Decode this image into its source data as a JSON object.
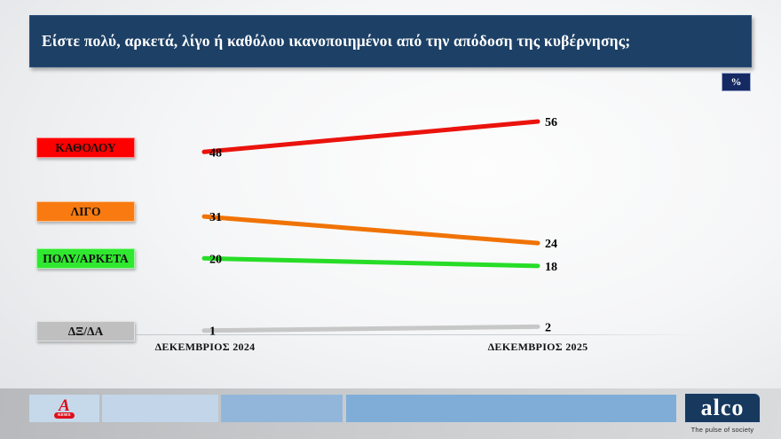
{
  "header": {
    "title": "Είστε πολύ, αρκετά, λίγο ή καθόλου ικανοποιημένοι από την απόδοση της κυβέρνησης;"
  },
  "unit_badge": "%",
  "chart_data": {
    "type": "line",
    "subtype": "slope-chart",
    "categories": [
      "ΔΕΚΕΜΒΡΙΟΣ 2024",
      "ΔΕΚΕΜΒΡΙΟΣ 2025"
    ],
    "series": [
      {
        "name": "ΚΑΘΟΛΟΥ",
        "values": [
          48,
          56
        ],
        "line_color": "#ea130d",
        "label_bg": "#ff0000"
      },
      {
        "name": "ΛΙΓΟ",
        "values": [
          31,
          24
        ],
        "line_color": "#f07306",
        "label_bg": "#f87a10"
      },
      {
        "name": "ΠΟΛΥ/ΑΡΚΕΤΑ",
        "values": [
          20,
          18
        ],
        "line_color": "#27dd27",
        "label_bg": "#30e830"
      },
      {
        "name": "ΔΞ/ΔΑ",
        "values": [
          1,
          2
        ],
        "line_color": "#c7c7c7",
        "label_bg": "#bfbfbf"
      }
    ],
    "ylim": [
      0,
      60
    ],
    "unit": "%",
    "grid": false,
    "legend_position": "left"
  },
  "colors": {
    "header_bg": "#1d4066",
    "badge_bg": "#152a63",
    "value_label_color": "#000000"
  },
  "footer": {
    "channel_logo": {
      "letter": "A",
      "badge": "NEWS"
    },
    "alco_logo": "alco",
    "alco_tagline": "The pulse of society"
  }
}
